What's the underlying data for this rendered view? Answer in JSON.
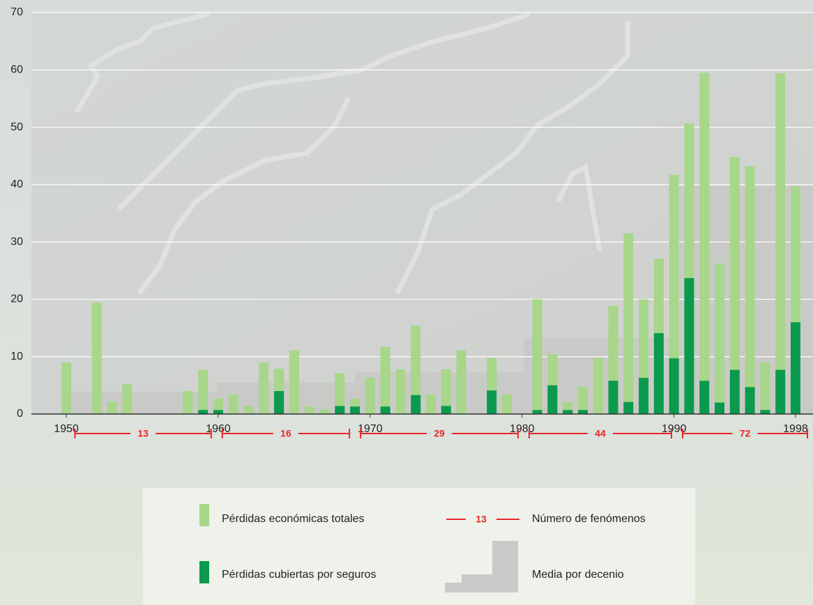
{
  "chart_data": {
    "type": "bar",
    "x": [
      1950,
      1951,
      1952,
      1953,
      1954,
      1955,
      1956,
      1957,
      1958,
      1959,
      1960,
      1961,
      1962,
      1963,
      1964,
      1965,
      1966,
      1967,
      1968,
      1969,
      1970,
      1971,
      1972,
      1973,
      1974,
      1975,
      1976,
      1977,
      1978,
      1979,
      1980,
      1981,
      1982,
      1983,
      1984,
      1985,
      1986,
      1987,
      1988,
      1989,
      1990,
      1991,
      1992,
      1993,
      1994,
      1995,
      1996,
      1997,
      1998
    ],
    "series": [
      {
        "name": "Pérdidas económicas totales",
        "color": "#a8d68a",
        "values": [
          9.0,
          null,
          19.4,
          2.2,
          5.2,
          null,
          null,
          null,
          4.0,
          7.7,
          2.7,
          3.4,
          1.4,
          9.0,
          7.9,
          11.1,
          1.3,
          0.8,
          7.1,
          2.7,
          6.3,
          11.7,
          7.8,
          15.4,
          3.4,
          7.8,
          11.1,
          null,
          9.8,
          3.4,
          null,
          20.0,
          10.4,
          2.1,
          4.8,
          9.8,
          18.9,
          31.5,
          20.0,
          27.1,
          41.7,
          50.7,
          59.5,
          26.3,
          44.8,
          43.2,
          9.0,
          59.4,
          39.7
        ]
      },
      {
        "name": "Pérdidas cubiertas por seguros",
        "color": "#0a9a4e",
        "values": [
          null,
          null,
          null,
          null,
          null,
          null,
          null,
          null,
          null,
          0.7,
          0.7,
          null,
          null,
          null,
          4.0,
          null,
          null,
          null,
          1.4,
          1.3,
          null,
          1.3,
          null,
          3.3,
          null,
          1.4,
          null,
          null,
          4.1,
          null,
          null,
          0.7,
          5.0,
          0.7,
          0.7,
          null,
          5.8,
          2.1,
          6.3,
          14.1,
          9.7,
          23.7,
          5.8,
          2.0,
          7.7,
          4.7,
          0.7,
          7.7,
          16.0
        ]
      }
    ],
    "decade_means": {
      "name": "Media por decenio",
      "color": "#c9cac7",
      "bins": [
        1950.2,
        1959.9,
        1969.0,
        1980.1,
        1990.2,
        1999.15
      ],
      "values": [
        3.9,
        5.5,
        7.3,
        13.3,
        39.7
      ]
    },
    "event_counts": {
      "name": "Número de fenómenos",
      "color": "#e8262a",
      "values": [
        13,
        16,
        29,
        44,
        72
      ]
    },
    "xlim": [
      1947.7,
      1999.15
    ],
    "xticks": [
      1950,
      1960,
      1970,
      1980,
      1990,
      1998
    ],
    "ylim": [
      0,
      70
    ],
    "yticks": [
      0,
      10,
      20,
      30,
      40,
      50,
      60,
      70
    ],
    "grid": true
  }
}
